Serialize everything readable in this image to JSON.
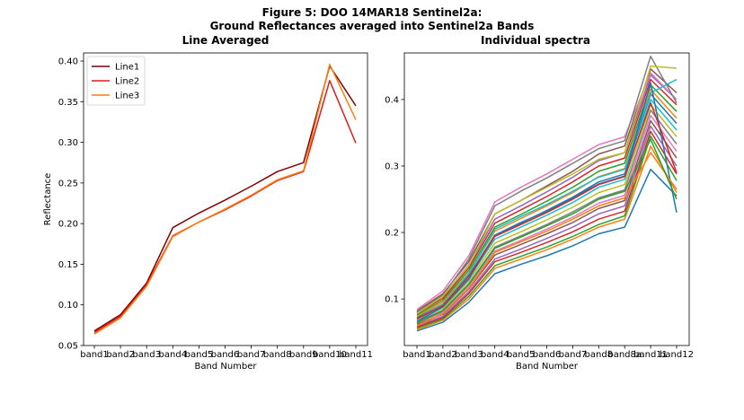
{
  "figure": {
    "title_line1": "Figure 5: DOO 14MAR18  Sentinel2a:",
    "title_line2": "Ground Reflectances averaged into Sentinel2a Bands"
  },
  "chart_data": [
    {
      "type": "line",
      "title": "Line Averaged",
      "xlabel": "Band Number",
      "ylabel": "Reflectance",
      "categories": [
        "band1",
        "band2",
        "band3",
        "band4",
        "band5",
        "band6",
        "band7",
        "band8",
        "band9",
        "band10",
        "band11"
      ],
      "ylim": [
        0.05,
        0.41
      ],
      "yticks": [
        "0.05",
        "0.10",
        "0.15",
        "0.20",
        "0.25",
        "0.30",
        "0.35",
        "0.40"
      ],
      "legend_position": "top-left",
      "grid": false,
      "series": [
        {
          "name": "Line1",
          "color": "#7f0000",
          "values": [
            0.068,
            0.088,
            0.127,
            0.195,
            0.213,
            0.229,
            0.246,
            0.264,
            0.275,
            0.394,
            0.345
          ]
        },
        {
          "name": "Line2",
          "color": "#dd1c1c",
          "values": [
            0.066,
            0.086,
            0.125,
            0.185,
            0.202,
            0.217,
            0.234,
            0.253,
            0.264,
            0.376,
            0.299
          ]
        },
        {
          "name": "Line3",
          "color": "#ff7f0e",
          "values": [
            0.064,
            0.084,
            0.123,
            0.184,
            0.202,
            0.218,
            0.235,
            0.254,
            0.265,
            0.396,
            0.328
          ]
        }
      ]
    },
    {
      "type": "line",
      "title": "Individual spectra",
      "xlabel": "Band Number",
      "ylabel": "",
      "categories": [
        "band1",
        "band2",
        "band3",
        "band4",
        "band5",
        "band6",
        "band7",
        "band8",
        "band8a",
        "band11",
        "band12"
      ],
      "ylim": [
        0.03,
        0.47
      ],
      "yticks": [
        "0.1",
        "0.2",
        "0.3",
        "0.4"
      ],
      "grid": false,
      "palette": [
        "#1f77b4",
        "#ff7f0e",
        "#2ca02c",
        "#d62728",
        "#9467bd",
        "#8c564b",
        "#e377c2",
        "#7f7f7f",
        "#bcbd22",
        "#17becf"
      ],
      "series": [
        {
          "values": [
            0.052,
            0.065,
            0.095,
            0.138,
            0.152,
            0.165,
            0.18,
            0.198,
            0.208,
            0.295,
            0.255
          ]
        },
        {
          "values": [
            0.054,
            0.068,
            0.1,
            0.146,
            0.16,
            0.174,
            0.19,
            0.208,
            0.22,
            0.33,
            0.26
          ]
        },
        {
          "values": [
            0.056,
            0.07,
            0.104,
            0.15,
            0.164,
            0.178,
            0.194,
            0.212,
            0.225,
            0.345,
            0.278
          ]
        },
        {
          "values": [
            0.058,
            0.072,
            0.108,
            0.156,
            0.17,
            0.185,
            0.201,
            0.22,
            0.232,
            0.352,
            0.288
          ]
        },
        {
          "values": [
            0.06,
            0.074,
            0.111,
            0.16,
            0.175,
            0.191,
            0.208,
            0.228,
            0.24,
            0.36,
            0.3
          ]
        },
        {
          "values": [
            0.062,
            0.077,
            0.115,
            0.166,
            0.182,
            0.198,
            0.215,
            0.236,
            0.248,
            0.368,
            0.312
          ]
        },
        {
          "values": [
            0.064,
            0.08,
            0.119,
            0.172,
            0.188,
            0.205,
            0.223,
            0.244,
            0.256,
            0.376,
            0.322
          ]
        },
        {
          "values": [
            0.066,
            0.083,
            0.123,
            0.178,
            0.195,
            0.212,
            0.231,
            0.252,
            0.264,
            0.384,
            0.333
          ]
        },
        {
          "values": [
            0.068,
            0.086,
            0.127,
            0.184,
            0.201,
            0.219,
            0.238,
            0.26,
            0.272,
            0.392,
            0.344
          ]
        },
        {
          "values": [
            0.07,
            0.089,
            0.131,
            0.19,
            0.208,
            0.226,
            0.245,
            0.268,
            0.28,
            0.4,
            0.354
          ]
        },
        {
          "values": [
            0.072,
            0.092,
            0.135,
            0.196,
            0.214,
            0.233,
            0.253,
            0.276,
            0.288,
            0.408,
            0.364
          ]
        },
        {
          "values": [
            0.074,
            0.095,
            0.139,
            0.202,
            0.221,
            0.24,
            0.26,
            0.284,
            0.296,
            0.415,
            0.372
          ]
        },
        {
          "values": [
            0.076,
            0.098,
            0.143,
            0.208,
            0.227,
            0.247,
            0.268,
            0.292,
            0.304,
            0.422,
            0.382
          ]
        },
        {
          "values": [
            0.078,
            0.101,
            0.147,
            0.214,
            0.234,
            0.254,
            0.276,
            0.3,
            0.312,
            0.43,
            0.392
          ]
        },
        {
          "values": [
            0.08,
            0.104,
            0.151,
            0.22,
            0.24,
            0.261,
            0.283,
            0.308,
            0.32,
            0.437,
            0.4
          ]
        },
        {
          "values": [
            0.082,
            0.108,
            0.156,
            0.228,
            0.248,
            0.27,
            0.292,
            0.318,
            0.33,
            0.446,
            0.41
          ]
        },
        {
          "values": [
            0.084,
            0.112,
            0.165,
            0.246,
            0.268,
            0.288,
            0.31,
            0.332,
            0.344,
            0.44,
            0.4
          ]
        },
        {
          "values": [
            0.08,
            0.106,
            0.16,
            0.24,
            0.262,
            0.282,
            0.304,
            0.326,
            0.338,
            0.465,
            0.395
          ]
        },
        {
          "values": [
            0.078,
            0.104,
            0.15,
            0.228,
            0.248,
            0.268,
            0.288,
            0.31,
            0.32,
            0.45,
            0.447
          ]
        },
        {
          "values": [
            0.07,
            0.092,
            0.138,
            0.205,
            0.224,
            0.242,
            0.262,
            0.283,
            0.295,
            0.41,
            0.43
          ]
        },
        {
          "values": [
            0.066,
            0.088,
            0.13,
            0.196,
            0.215,
            0.232,
            0.252,
            0.273,
            0.285,
            0.425,
            0.23
          ]
        },
        {
          "values": [
            0.06,
            0.078,
            0.116,
            0.17,
            0.186,
            0.202,
            0.22,
            0.24,
            0.252,
            0.32,
            0.265
          ]
        },
        {
          "values": [
            0.064,
            0.082,
            0.122,
            0.176,
            0.193,
            0.21,
            0.228,
            0.25,
            0.262,
            0.34,
            0.25
          ]
        },
        {
          "values": [
            0.07,
            0.09,
            0.134,
            0.194,
            0.212,
            0.23,
            0.25,
            0.272,
            0.284,
            0.395,
            0.29
          ]
        }
      ]
    }
  ]
}
